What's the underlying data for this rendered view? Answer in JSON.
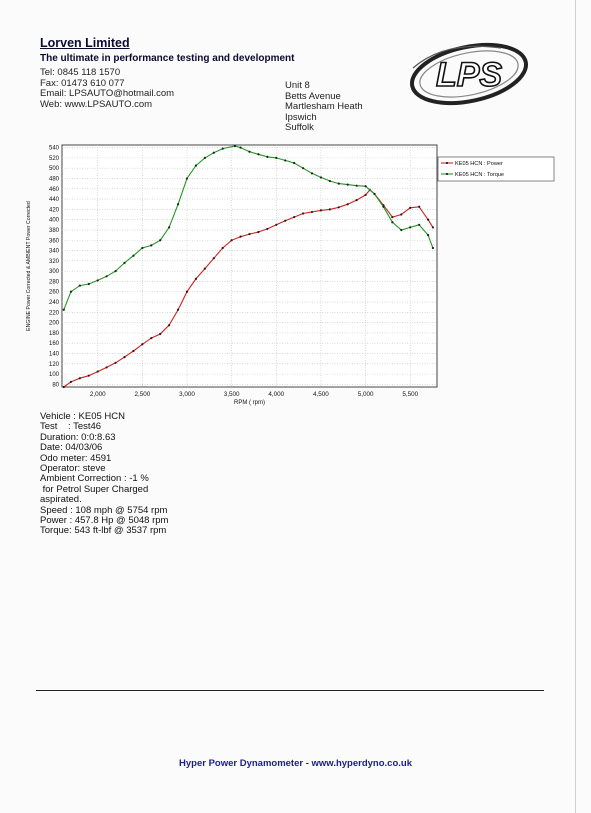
{
  "header": {
    "company": "Lorven Limited",
    "tagline": "The ultimate in performance testing and development",
    "contact": [
      "Tel: 0845 118 1570",
      "Fax: 01473 610 077",
      "Email: LPSAUTO@hotmail.com",
      "Web: www.LPSAUTO.com"
    ],
    "address": [
      "Unit 8",
      "Betts Avenue",
      "Martlesham Heath",
      "Ipswich",
      "Suffolk"
    ],
    "logo_text": "LPS"
  },
  "chart_data": {
    "type": "line",
    "xlabel": "RPM ( rpm)",
    "ylabel": "ENGINE Power Corrected & AMBIENT Power Corrected",
    "xlim": [
      1600,
      5800
    ],
    "ylim": [
      75,
      545
    ],
    "x_ticks": [
      2000,
      2500,
      3000,
      3500,
      4000,
      4500,
      5000,
      5500
    ],
    "x_tick_labels": [
      "2,000",
      "2,500",
      "3,000",
      "3,500",
      "4,000",
      "4,500",
      "5,000",
      "5,500"
    ],
    "y_ticks": [
      80,
      100,
      120,
      140,
      160,
      180,
      200,
      220,
      240,
      260,
      280,
      300,
      320,
      340,
      360,
      380,
      400,
      420,
      440,
      460,
      480,
      500,
      520,
      540
    ],
    "grid": true,
    "legend_position": "top-right",
    "series": [
      {
        "name": "KE05 HCN : Power",
        "color": "#d42020",
        "x": [
          1620,
          1700,
          1800,
          1900,
          2000,
          2100,
          2200,
          2300,
          2400,
          2500,
          2600,
          2700,
          2800,
          2900,
          3000,
          3100,
          3200,
          3300,
          3400,
          3500,
          3600,
          3700,
          3800,
          3900,
          4000,
          4100,
          4200,
          4300,
          4400,
          4500,
          4600,
          4700,
          4800,
          4900,
          5000,
          5048,
          5100,
          5200,
          5300,
          5400,
          5500,
          5600,
          5700,
          5754
        ],
        "y": [
          75,
          85,
          92,
          97,
          105,
          113,
          122,
          133,
          145,
          158,
          170,
          178,
          195,
          225,
          260,
          285,
          305,
          325,
          345,
          360,
          367,
          372,
          376,
          382,
          390,
          398,
          405,
          412,
          415,
          418,
          420,
          424,
          430,
          438,
          448,
          457.8,
          450,
          428,
          405,
          410,
          423,
          425,
          400,
          385
        ]
      },
      {
        "name": "KE05 HCN : Torque",
        "color": "#1f9a1f",
        "x": [
          1620,
          1700,
          1800,
          1900,
          2000,
          2100,
          2200,
          2300,
          2400,
          2500,
          2600,
          2700,
          2800,
          2900,
          3000,
          3100,
          3200,
          3300,
          3400,
          3537,
          3600,
          3700,
          3800,
          3900,
          4000,
          4100,
          4200,
          4300,
          4400,
          4500,
          4600,
          4700,
          4800,
          4900,
          5000,
          5100,
          5200,
          5300,
          5400,
          5500,
          5600,
          5700,
          5754
        ],
        "y": [
          225,
          260,
          272,
          275,
          282,
          290,
          300,
          316,
          330,
          345,
          350,
          360,
          385,
          430,
          480,
          505,
          520,
          530,
          538,
          543,
          540,
          532,
          527,
          522,
          520,
          515,
          510,
          500,
          490,
          482,
          475,
          470,
          468,
          466,
          465,
          450,
          425,
          395,
          380,
          385,
          390,
          370,
          345
        ]
      }
    ]
  },
  "test_info": [
    "Vehicle : KE05 HCN",
    "Test    : Test46",
    "Duration: 0:0:8.63",
    "Date: 04/03/06",
    "Odo meter: 4591",
    "Operator: steve",
    "Ambient Correction : -1 %",
    " for Petrol Super Charged",
    "aspirated.",
    "Speed : 108 mph @ 5754 rpm",
    "Power : 457.8 Hp @ 5048 rpm",
    "Torque: 543 ft-lbf @ 3537 rpm"
  ],
  "footer": "Hyper Power Dynamometer  -  www.hyperdyno.co.uk"
}
